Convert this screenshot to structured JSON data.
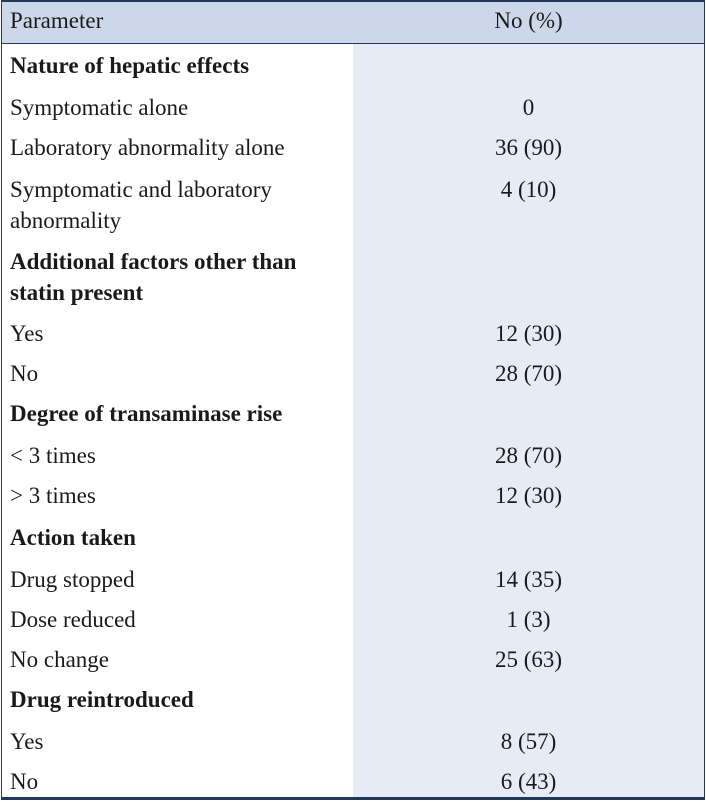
{
  "table": {
    "headers": {
      "parameter": "Parameter",
      "value": "No (%)"
    },
    "rows": [
      {
        "type": "section",
        "label": "Nature of hepatic effects",
        "value": ""
      },
      {
        "type": "item",
        "label": "Symptomatic alone",
        "value": "0"
      },
      {
        "type": "item",
        "label": "Laboratory abnormality alone",
        "value": "36 (90)"
      },
      {
        "type": "item",
        "label": "Symptomatic and laboratory abnormality",
        "value": "4 (10)"
      },
      {
        "type": "section",
        "label": "Additional factors other than statin present",
        "value": ""
      },
      {
        "type": "item",
        "label": "Yes",
        "value": "12 (30)"
      },
      {
        "type": "item",
        "label": "No",
        "value": "28 (70)"
      },
      {
        "type": "section",
        "label": "Degree of transaminase rise",
        "value": ""
      },
      {
        "type": "item",
        "label": "< 3 times",
        "value": "28 (70)"
      },
      {
        "type": "item",
        "label": "> 3 times",
        "value": "12 (30)"
      },
      {
        "type": "section",
        "label": "Action taken",
        "value": ""
      },
      {
        "type": "item",
        "label": "Drug stopped",
        "value": "14 (35)"
      },
      {
        "type": "item",
        "label": "Dose reduced",
        "value": "1 (3)"
      },
      {
        "type": "item",
        "label": "No change",
        "value": "25 (63)"
      },
      {
        "type": "section",
        "label": "Drug reintroduced",
        "value": ""
      },
      {
        "type": "item",
        "label": "Yes",
        "value": "8 (57)"
      },
      {
        "type": "item",
        "label": "No",
        "value": "6 (43)"
      }
    ]
  }
}
